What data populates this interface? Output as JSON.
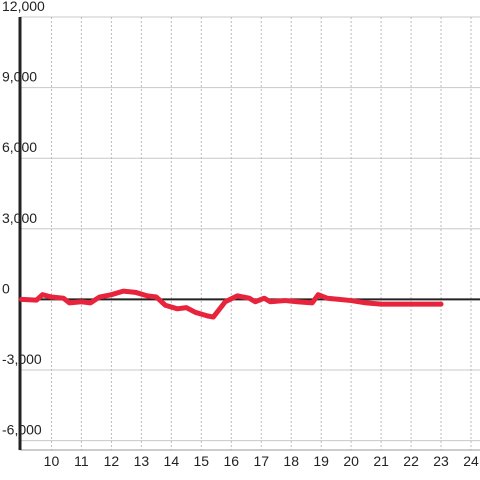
{
  "chart_data": {
    "type": "line",
    "x": [
      9.0,
      9.5,
      9.7,
      10.0,
      10.4,
      10.6,
      11.0,
      11.3,
      11.6,
      12.0,
      12.4,
      12.8,
      13.2,
      13.5,
      13.8,
      14.2,
      14.5,
      14.8,
      15.2,
      15.4,
      15.8,
      16.2,
      16.6,
      16.8,
      17.1,
      17.3,
      17.8,
      18.2,
      18.7,
      18.9,
      19.2,
      19.6,
      20.0,
      20.5,
      21.0,
      22.0,
      23.0
    ],
    "series": [
      {
        "color": "#e8243c",
        "values": [
          0,
          -30,
          200,
          100,
          50,
          -150,
          -100,
          -150,
          100,
          200,
          350,
          300,
          150,
          100,
          -250,
          -400,
          -350,
          -550,
          -700,
          -750,
          -100,
          150,
          50,
          -100,
          50,
          -100,
          -50,
          -100,
          -150,
          200,
          50,
          0,
          -50,
          -150,
          -200,
          -200,
          -200
        ]
      }
    ],
    "xlim": [
      8.95,
      24.3
    ],
    "xticks": [
      10,
      11,
      12,
      13,
      14,
      15,
      16,
      17,
      18,
      19,
      20,
      21,
      22,
      23,
      24
    ],
    "ylim": [
      -6400,
      12000
    ],
    "yticks": [
      {
        "value": 12000,
        "label": "12,000"
      },
      {
        "value": 9000,
        "label": "9,000"
      },
      {
        "value": 6000,
        "label": "6,000"
      },
      {
        "value": 3000,
        "label": "3,000"
      },
      0,
      {
        "value": -3000,
        "label": "-3,000"
      },
      {
        "value": -6000,
        "label": "-6,000"
      }
    ],
    "grid": true
  }
}
